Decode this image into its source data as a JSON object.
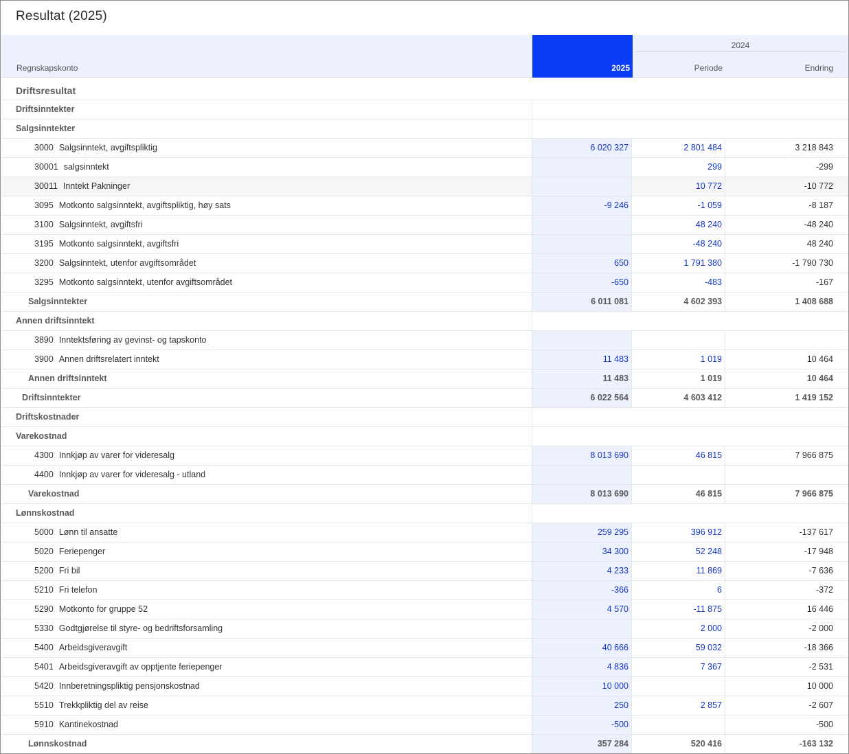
{
  "title": "Resultat (2025)",
  "header": {
    "account_label": "Regnskapskonto",
    "col_2025": "2025",
    "group_2024": "2024",
    "col_periode": "Periode",
    "col_endring": "Endring"
  },
  "section": "Driftsresultat",
  "rows": [
    {
      "type": "group",
      "label": "Driftsinntekter"
    },
    {
      "type": "group",
      "label": "Salgsinntekter"
    },
    {
      "type": "acct",
      "code": "3000",
      "name": "Salgsinntekt, avgiftspliktig",
      "v2025": "6 020 327",
      "periode": "2 801 484",
      "endring": "3 218 843"
    },
    {
      "type": "acct",
      "code": "30001",
      "name": "salgsinntekt",
      "v2025": "",
      "periode": "299",
      "endring": "-299"
    },
    {
      "type": "acct",
      "code": "30011",
      "name": "Inntekt Pakninger",
      "v2025": "",
      "periode": "10 772",
      "endring": "-10 772",
      "alt": true
    },
    {
      "type": "acct",
      "code": "3095",
      "name": "Motkonto salgsinntekt, avgiftspliktig, høy sats",
      "v2025": "-9 246",
      "periode": "-1 059",
      "endring": "-8 187"
    },
    {
      "type": "acct",
      "code": "3100",
      "name": "Salgsinntekt, avgiftsfri",
      "v2025": "",
      "periode": "48 240",
      "endring": "-48 240"
    },
    {
      "type": "acct",
      "code": "3195",
      "name": "Motkonto salgsinntekt, avgiftsfri",
      "v2025": "",
      "periode": "-48 240",
      "endring": "48 240"
    },
    {
      "type": "acct",
      "code": "3200",
      "name": "Salgsinntekt, utenfor avgiftsområdet",
      "v2025": "650",
      "periode": "1 791 380",
      "endring": "-1 790 730"
    },
    {
      "type": "acct",
      "code": "3295",
      "name": "Motkonto salgsinntekt, utenfor avgiftsområdet",
      "v2025": "-650",
      "periode": "-483",
      "endring": "-167"
    },
    {
      "type": "sub",
      "label": "Salgsinntekter",
      "v2025": "6 011 081",
      "periode": "4 602 393",
      "endring": "1 408 688"
    },
    {
      "type": "group",
      "label": "Annen driftsinntekt"
    },
    {
      "type": "acct",
      "code": "3890",
      "name": "Inntektsføring av gevinst- og tapskonto",
      "v2025": "",
      "periode": "",
      "endring": ""
    },
    {
      "type": "acct",
      "code": "3900",
      "name": "Annen driftsrelatert inntekt",
      "v2025": "11 483",
      "periode": "1 019",
      "endring": "10 464"
    },
    {
      "type": "sub",
      "label": "Annen driftsinntekt",
      "v2025": "11 483",
      "periode": "1 019",
      "endring": "10 464"
    },
    {
      "type": "sub2",
      "label": "Driftsinntekter",
      "v2025": "6 022 564",
      "periode": "4 603 412",
      "endring": "1 419 152"
    },
    {
      "type": "group",
      "label": "Driftskostnader"
    },
    {
      "type": "group",
      "label": "Varekostnad"
    },
    {
      "type": "acct",
      "code": "4300",
      "name": "Innkjøp av varer for videresalg",
      "v2025": "8 013 690",
      "periode": "46 815",
      "endring": "7 966 875"
    },
    {
      "type": "acct",
      "code": "4400",
      "name": "Innkjøp av varer for videresalg - utland",
      "v2025": "",
      "periode": "",
      "endring": ""
    },
    {
      "type": "sub",
      "label": "Varekostnad",
      "v2025": "8 013 690",
      "periode": "46 815",
      "endring": "7 966 875"
    },
    {
      "type": "group",
      "label": "Lønnskostnad"
    },
    {
      "type": "acct",
      "code": "5000",
      "name": "Lønn til ansatte",
      "v2025": "259 295",
      "periode": "396 912",
      "endring": "-137 617"
    },
    {
      "type": "acct",
      "code": "5020",
      "name": "Feriepenger",
      "v2025": "34 300",
      "periode": "52 248",
      "endring": "-17 948"
    },
    {
      "type": "acct",
      "code": "5200",
      "name": "Fri bil",
      "v2025": "4 233",
      "periode": "11 869",
      "endring": "-7 636"
    },
    {
      "type": "acct",
      "code": "5210",
      "name": "Fri telefon",
      "v2025": "-366",
      "periode": "6",
      "endring": "-372"
    },
    {
      "type": "acct",
      "code": "5290",
      "name": "Motkonto for gruppe 52",
      "v2025": "4 570",
      "periode": "-11 875",
      "endring": "16 446"
    },
    {
      "type": "acct",
      "code": "5330",
      "name": "Godtgjørelse til styre- og bedriftsforsamling",
      "v2025": "",
      "periode": "2 000",
      "endring": "-2 000"
    },
    {
      "type": "acct",
      "code": "5400",
      "name": "Arbeidsgiveravgift",
      "v2025": "40 666",
      "periode": "59 032",
      "endring": "-18 366"
    },
    {
      "type": "acct",
      "code": "5401",
      "name": "Arbeidsgiveravgift av opptjente feriepenger",
      "v2025": "4 836",
      "periode": "7 367",
      "endring": "-2 531"
    },
    {
      "type": "acct",
      "code": "5420",
      "name": "Innberetningspliktig pensjonskostnad",
      "v2025": "10 000",
      "periode": "",
      "endring": "10 000"
    },
    {
      "type": "acct",
      "code": "5510",
      "name": "Trekkpliktig del av reise",
      "v2025": "250",
      "periode": "2 857",
      "endring": "-2 607"
    },
    {
      "type": "acct",
      "code": "5910",
      "name": "Kantinekostnad",
      "v2025": "-500",
      "periode": "",
      "endring": "-500"
    },
    {
      "type": "sub",
      "label": "Lønnskostnad",
      "v2025": "357 284",
      "periode": "520 416",
      "endring": "-163 132"
    }
  ]
}
